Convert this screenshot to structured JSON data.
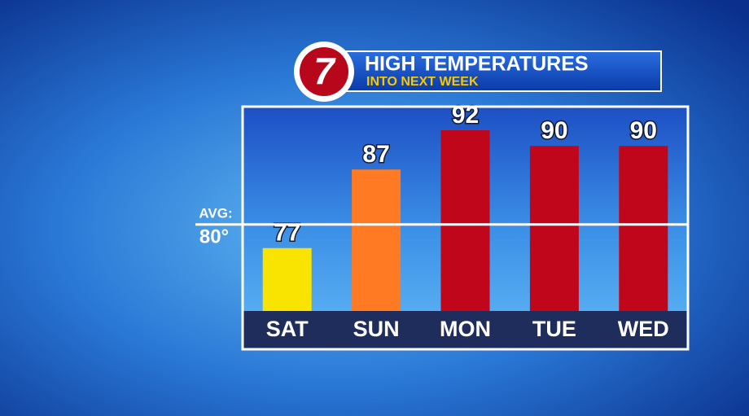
{
  "chart_data": {
    "type": "bar",
    "logo": "7",
    "title": "HIGH TEMPERATURES",
    "subtitle": "INTO NEXT WEEK",
    "categories": [
      "SAT",
      "SUN",
      "MON",
      "TUE",
      "WED"
    ],
    "values": [
      77,
      87,
      92,
      90,
      90
    ],
    "colors": [
      "#f9e300",
      "#ff7a22",
      "#c0061b",
      "#c0061b",
      "#c0061b"
    ],
    "ylim": [
      69,
      95
    ],
    "average_title": "AVG:",
    "average": {
      "value": 80,
      "label": "80°"
    }
  }
}
